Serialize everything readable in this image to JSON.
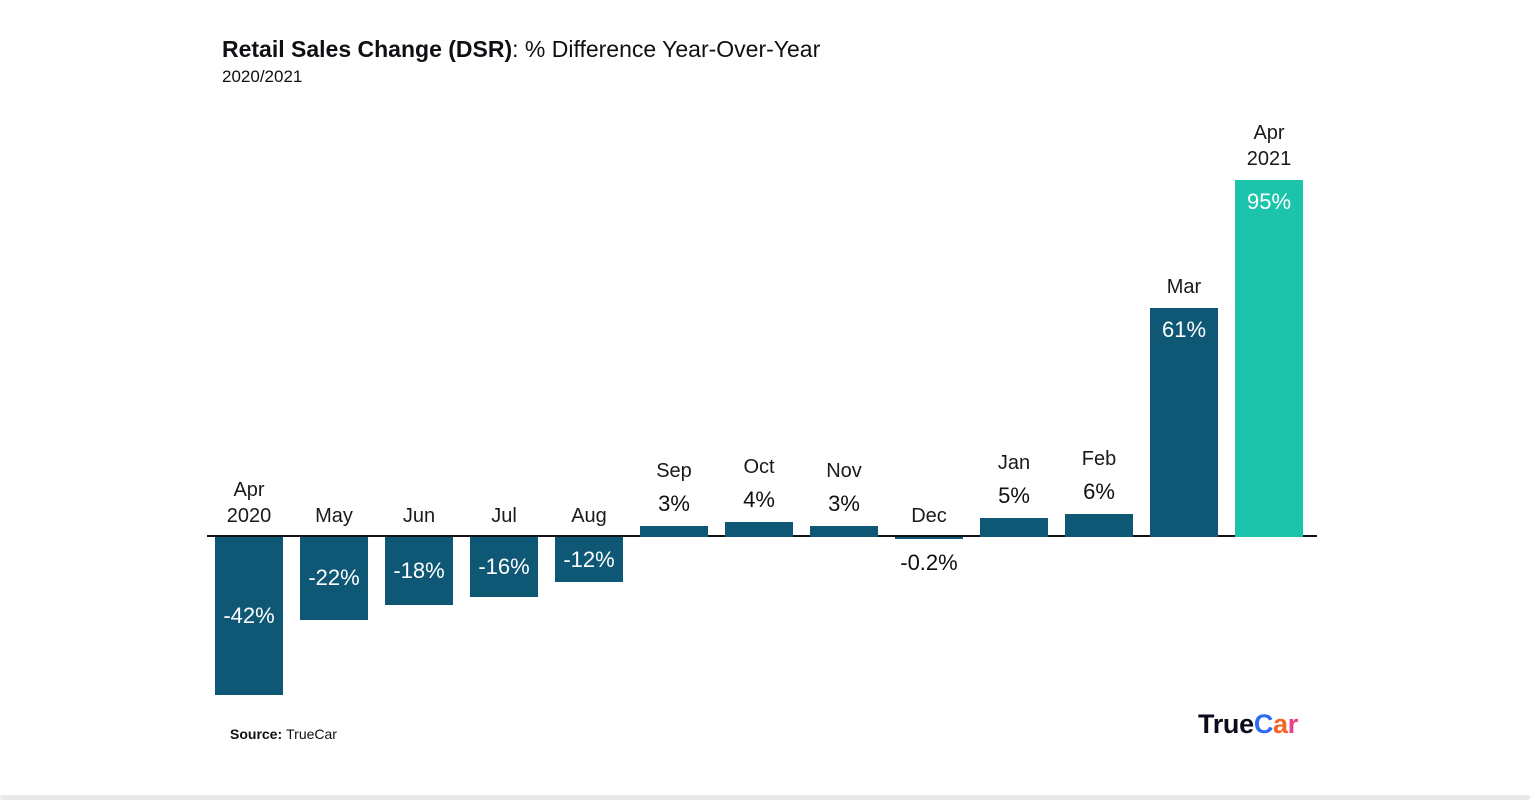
{
  "page": {
    "title_bold": "Retail Sales Change (DSR)",
    "title_regular": ": % Difference Year-Over-Year",
    "subtitle": "2020/2021",
    "source_label": "Source:",
    "source_value": "TrueCar",
    "logo_true": "True",
    "logo_c": "C",
    "logo_a": "a",
    "logo_r": "r"
  },
  "colors": {
    "bar_default": "#0e5876",
    "bar_highlight": "#1bc4aa",
    "axis_line": "#121216",
    "text_dark": "#101014",
    "value_inside_text": "#ffffff",
    "logo_true": "#0c0c1e",
    "logo_c": "#2e6bf0",
    "logo_a": "#f26522",
    "logo_r": "#ee3d8f"
  },
  "chart_data": {
    "type": "bar",
    "title": "Retail Sales Change (DSR): % Difference Year-Over-Year",
    "subtitle": "2020/2021",
    "categories": [
      "Apr 2020",
      "May",
      "Jun",
      "Jul",
      "Aug",
      "Sep",
      "Oct",
      "Nov",
      "Dec",
      "Jan",
      "Feb",
      "Mar",
      "Apr 2021"
    ],
    "category_lines": [
      [
        "Apr",
        "2020"
      ],
      [
        "May"
      ],
      [
        "Jun"
      ],
      [
        "Jul"
      ],
      [
        "Aug"
      ],
      [
        "Sep"
      ],
      [
        "Oct"
      ],
      [
        "Nov"
      ],
      [
        "Dec"
      ],
      [
        "Jan"
      ],
      [
        "Feb"
      ],
      [
        "Mar"
      ],
      [
        "Apr",
        "2021"
      ]
    ],
    "values": [
      -42,
      -22,
      -18,
      -16,
      -12,
      3,
      4,
      3,
      -0.2,
      5,
      6,
      61,
      95
    ],
    "value_labels": [
      "-42%",
      "-22%",
      "-18%",
      "-16%",
      "-12%",
      "3%",
      "4%",
      "3%",
      "-0.2%",
      "5%",
      "6%",
      "61%",
      "95%"
    ],
    "highlight_index": 12,
    "xlabel": "",
    "ylabel": "",
    "ylim": [
      -50,
      100
    ],
    "grid": false,
    "legend": false,
    "source": "TrueCar"
  }
}
